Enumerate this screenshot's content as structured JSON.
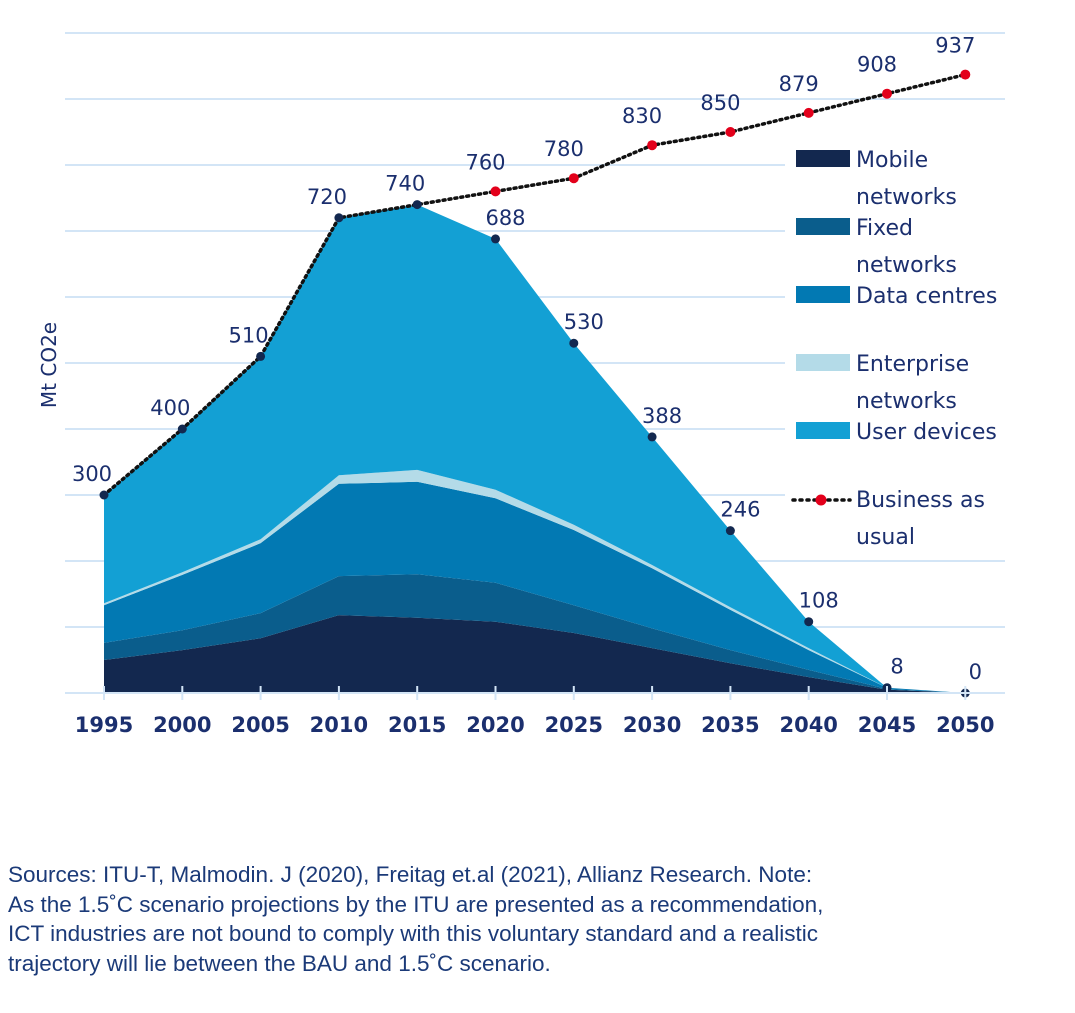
{
  "chart_data": {
    "type": "area",
    "stacked": true,
    "title": "",
    "xlabel": "",
    "ylabel": "Mt CO2e",
    "ylim": [
      0,
      1000
    ],
    "grid": true,
    "legend_position": "right",
    "categories": [
      "1995",
      "2000",
      "2005",
      "2010",
      "2015",
      "2020",
      "2025",
      "2030",
      "2035",
      "2040",
      "2045",
      "2050"
    ],
    "series": [
      {
        "name": "Mobile networks",
        "legend_lines": [
          "Mobile",
          "networks"
        ],
        "color": "#13284f",
        "values": [
          50,
          65,
          83,
          118,
          114,
          108,
          91,
          68,
          45,
          24,
          5,
          0
        ]
      },
      {
        "name": "Fixed networks",
        "legend_lines": [
          "Fixed",
          "networks"
        ],
        "color": "#0a5d8c",
        "values": [
          26,
          30,
          38,
          59,
          66,
          59,
          42,
          30,
          20,
          11,
          1,
          0
        ]
      },
      {
        "name": "Data centres",
        "legend_lines": [
          "Data centres"
        ],
        "color": "#0279b3",
        "values": [
          57,
          84,
          106,
          140,
          140,
          128,
          114,
          91,
          61,
          30,
          2,
          0
        ]
      },
      {
        "name": "Enterprise networks",
        "legend_lines": [
          "Enterprise",
          "networks"
        ],
        "color": "#b4dbe8",
        "values": [
          3,
          4,
          6,
          13,
          18,
          13,
          8,
          5,
          4,
          3,
          0,
          0
        ]
      },
      {
        "name": "User devices",
        "legend_lines": [
          "User devices"
        ],
        "color": "#13a0d4",
        "values": [
          164,
          217,
          277,
          390,
          402,
          380,
          275,
          194,
          116,
          40,
          0,
          0
        ]
      }
    ],
    "totals": [
      300,
      400,
      510,
      720,
      740,
      688,
      530,
      388,
      246,
      108,
      8,
      0
    ],
    "bau": {
      "name": "Business as usual",
      "legend_lines": [
        "Business as",
        "usual"
      ],
      "color": "#e3001b",
      "values": [
        300,
        400,
        510,
        720,
        740,
        760,
        780,
        830,
        850,
        879,
        908,
        937
      ]
    }
  },
  "notes": [
    "Sources: ITU-T, Malmodin. J (2020), Freitag et.al (2021), Allianz Research. Note:",
    "As the 1.5˚C scenario projections by the ITU are presented as a recommendation,",
    "ICT industries are not bound to comply with this voluntary standard and a realistic",
    "trajectory will lie between the BAU and 1.5˚C scenario."
  ]
}
